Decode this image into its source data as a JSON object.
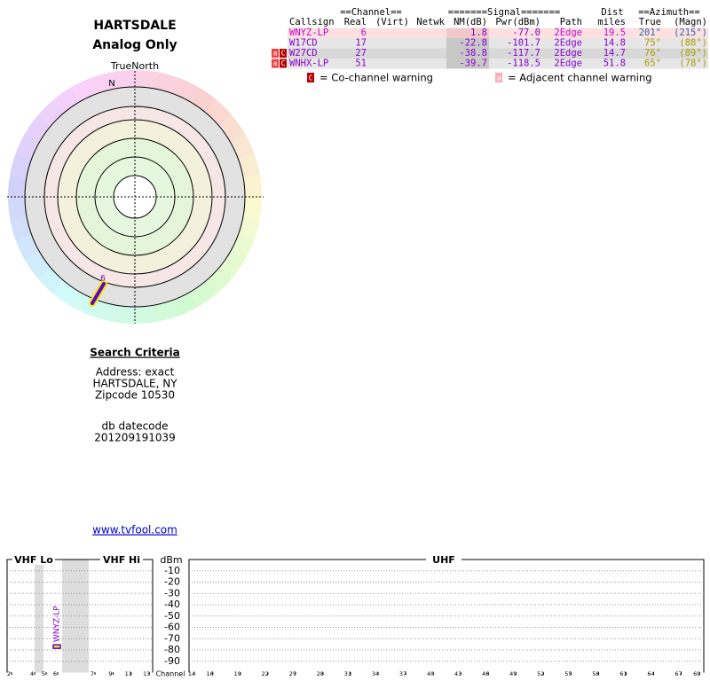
{
  "header": {
    "title": "HARTSDALE",
    "subtitle": "Analog Only"
  },
  "compass": {
    "label": "TrueNorth",
    "north": "N",
    "marker": "6"
  },
  "table": {
    "groups": [
      "==Channel==",
      "=======Signal=======",
      "Dist",
      "==Azimuth=="
    ],
    "columns": [
      "Callsign",
      "Real",
      "(Virt)",
      "Netwk",
      "NM(dB)",
      "Pwr(dBm)",
      "Path",
      "miles",
      "True",
      "(Magn)"
    ],
    "rows": [
      {
        "callsign": "WNYZ-LP",
        "real": "6",
        "nm": "1.8",
        "pwr": "-77.0",
        "path": "2Edge",
        "miles": "19.5",
        "true": "201°",
        "magn": "(215°)"
      },
      {
        "callsign": "W17CD",
        "real": "17",
        "nm": "-22.8",
        "pwr": "-101.7",
        "path": "2Edge",
        "miles": "14.8",
        "true": "75°",
        "magn": "(88°)"
      },
      {
        "callsign": "W27CD",
        "real": "27",
        "nm": "-38.8",
        "pwr": "-117.7",
        "path": "2Edge",
        "miles": "14.7",
        "true": "76°",
        "magn": "(89°)",
        "warnings": [
          "a",
          "C"
        ]
      },
      {
        "callsign": "WNHX-LP",
        "real": "51",
        "nm": "-39.7",
        "pwr": "-118.5",
        "path": "2Edge",
        "miles": "51.8",
        "true": "65°",
        "magn": "(78°)",
        "warnings": [
          "a",
          "C"
        ]
      }
    ],
    "legend": [
      {
        "symbol": "C",
        "text": "= Co-channel warning"
      },
      {
        "symbol": "a",
        "text": "= Adjacent channel warning"
      }
    ]
  },
  "search": {
    "title": "Search Criteria",
    "lines": [
      "Address: exact",
      "HARTSDALE, NY",
      "Zipcode 10530"
    ],
    "datecode_label": "db datecode",
    "datecode": "201209191039",
    "link": "www.tvfool.com"
  },
  "spectrum": {
    "bands": [
      "VHF Lo",
      "VHF Hi",
      "UHF"
    ],
    "ylabel": "dBm",
    "xlabel": "Channel",
    "ylim": [
      -100,
      0
    ],
    "yticks": [
      -10,
      -20,
      -30,
      -40,
      -50,
      -60,
      -70,
      -80,
      -90
    ],
    "vhf_channels": [
      2,
      4,
      5,
      6,
      7,
      9,
      11,
      13
    ],
    "uhf_channels": [
      14,
      16,
      19,
      22,
      25,
      28,
      31,
      34,
      37,
      40,
      43,
      46,
      49,
      52,
      55,
      58,
      61,
      64,
      67,
      69
    ],
    "stations": [
      {
        "label": "WNYZ-LP",
        "channel": 6,
        "value": -77.0
      }
    ]
  }
}
